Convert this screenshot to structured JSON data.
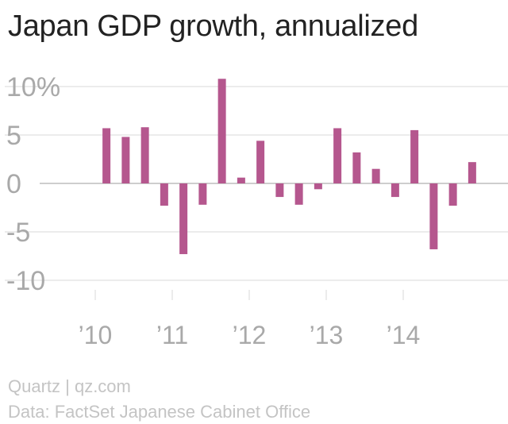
{
  "title": "Japan GDP growth, annualized",
  "source": "Quartz | qz.com",
  "data_credit": "Data: FactSet Japanese Cabinet Office",
  "colors": {
    "bar": "#b5578e",
    "grid": "#e6e6e6",
    "zero_line": "#bdbdbd",
    "tick_label": "#a9a9a9"
  },
  "chart_data": {
    "type": "bar",
    "title": "Japan GDP growth, annualized",
    "xlabel": "",
    "ylabel": "",
    "ylim": [
      -12,
      12
    ],
    "y_ticks": [
      {
        "value": 10,
        "label": "10%"
      },
      {
        "value": 5,
        "label": "5"
      },
      {
        "value": 0,
        "label": "0"
      },
      {
        "value": -5,
        "label": "-5"
      },
      {
        "value": -10,
        "label": "-10"
      }
    ],
    "x_ticks": [
      {
        "year": 2010,
        "label": "’10"
      },
      {
        "year": 2011,
        "label": "’11"
      },
      {
        "year": 2012,
        "label": "’12"
      },
      {
        "year": 2013,
        "label": "’13"
      },
      {
        "year": 2014,
        "label": "’14"
      }
    ],
    "categories": [
      "2010 Q1",
      "2010 Q2",
      "2010 Q3",
      "2010 Q4",
      "2011 Q1",
      "2011 Q2",
      "2011 Q3",
      "2011 Q4",
      "2012 Q1",
      "2012 Q2",
      "2012 Q3",
      "2012 Q4",
      "2013 Q1",
      "2013 Q2",
      "2013 Q3",
      "2013 Q4",
      "2014 Q1",
      "2014 Q2",
      "2014 Q3",
      "2014 Q4"
    ],
    "values": [
      5.7,
      4.8,
      5.8,
      -2.3,
      -7.3,
      -2.2,
      10.8,
      0.6,
      4.4,
      -1.4,
      -2.2,
      -0.6,
      5.7,
      3.2,
      1.5,
      -1.4,
      5.5,
      -6.8,
      -2.3,
      2.2
    ],
    "grid": true,
    "legend": "none"
  }
}
